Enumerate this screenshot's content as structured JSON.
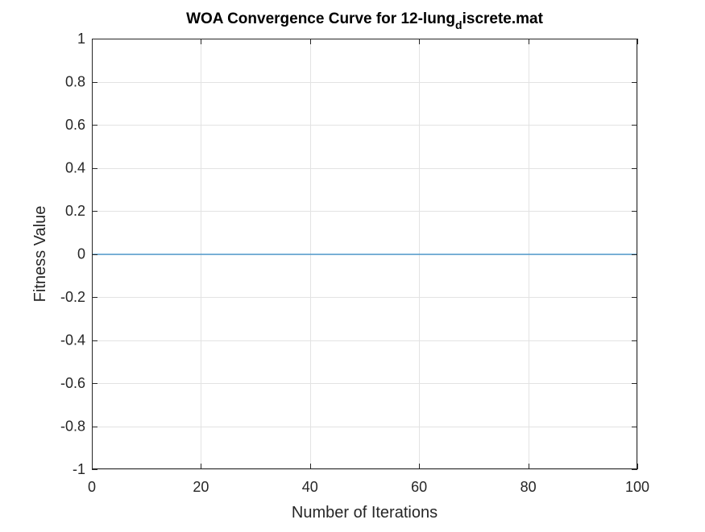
{
  "chart_data": {
    "type": "line",
    "title": {
      "main": "WOA Convergence Curve for 12-lung",
      "subscript": "d",
      "suffix": "iscrete.mat"
    },
    "xlabel": "Number of Iterations",
    "ylabel": "Fitness Value",
    "xlim": [
      0,
      100
    ],
    "ylim": [
      -1,
      1
    ],
    "x_ticks": [
      0,
      20,
      40,
      60,
      80,
      100
    ],
    "x_tick_labels": [
      "0",
      "20",
      "40",
      "60",
      "80",
      "100"
    ],
    "y_ticks": [
      -1,
      -0.8,
      -0.6,
      -0.4,
      -0.2,
      0,
      0.2,
      0.4,
      0.6,
      0.8,
      1
    ],
    "y_tick_labels": [
      "-1",
      "-0.8",
      "-0.6",
      "-0.4",
      "-0.2",
      "0",
      "0.2",
      "0.4",
      "0.6",
      "0.8",
      "1"
    ],
    "grid": true,
    "series": [
      {
        "x": [
          0,
          100
        ],
        "y": [
          0,
          0
        ],
        "color": "#0072BD"
      }
    ]
  }
}
